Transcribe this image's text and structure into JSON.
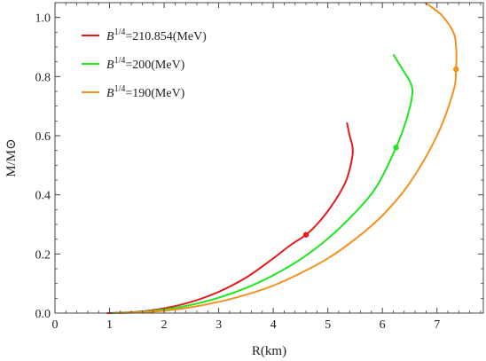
{
  "chart_data": {
    "type": "line",
    "title": "",
    "xlabel": "R(km)",
    "ylabel": "M/M⊙",
    "xlim": [
      0,
      7.85
    ],
    "ylim": [
      0,
      1.05
    ],
    "xticks": [
      0,
      1,
      2,
      3,
      4,
      5,
      6,
      7
    ],
    "yticks": [
      0.0,
      0.2,
      0.4,
      0.6,
      0.8,
      1.0
    ],
    "x_tick_labels": [
      "0",
      "1",
      "2",
      "3",
      "4",
      "5",
      "6",
      "7"
    ],
    "y_tick_labels": [
      "0.0",
      "0.2",
      "0.4",
      "0.6",
      "0.8",
      "1.0"
    ],
    "grid": false,
    "legend_position": "top-left",
    "series": [
      {
        "name": "B^{1/4}=210.854(MeV)",
        "legend_base": "B",
        "legend_sup": "1/4",
        "legend_rest": "=210.854(MeV)",
        "color": "#e41a1c",
        "x": [
          0.95,
          1.5,
          2.0,
          2.5,
          3.0,
          3.5,
          4.0,
          4.3,
          4.6,
          4.8,
          5.0,
          5.2,
          5.35,
          5.45,
          5.45,
          5.4,
          5.35
        ],
        "y": [
          0.0,
          0.004,
          0.016,
          0.038,
          0.072,
          0.12,
          0.185,
          0.228,
          0.265,
          0.3,
          0.345,
          0.4,
          0.455,
          0.53,
          0.565,
          0.6,
          0.645
        ],
        "marker": {
          "x": 4.6,
          "y": 0.265
        }
      },
      {
        "name": "B^{1/4}=200(MeV)",
        "legend_base": "B",
        "legend_sup": "1/4",
        "legend_rest": "=200(MeV)",
        "color": "#1ee61e",
        "x": [
          1.05,
          1.5,
          2.0,
          2.5,
          3.0,
          3.5,
          4.0,
          4.5,
          5.0,
          5.5,
          5.9,
          6.25,
          6.45,
          6.55,
          6.5,
          6.4,
          6.3,
          6.2
        ],
        "y": [
          0.0,
          0.003,
          0.012,
          0.028,
          0.052,
          0.085,
          0.128,
          0.182,
          0.252,
          0.34,
          0.43,
          0.56,
          0.66,
          0.745,
          0.785,
          0.815,
          0.845,
          0.875
        ],
        "marker": {
          "x": 6.25,
          "y": 0.56
        }
      },
      {
        "name": "B^{1/4}=190(MeV)",
        "legend_base": "B",
        "legend_sup": "1/4",
        "legend_rest": "=190(MeV)",
        "color": "#f5901e",
        "x": [
          1.1,
          1.5,
          2.0,
          2.5,
          3.0,
          3.5,
          4.0,
          4.5,
          5.0,
          5.5,
          6.0,
          6.5,
          7.0,
          7.3,
          7.35,
          7.35,
          7.3,
          7.1,
          6.9,
          6.78
        ],
        "y": [
          0.0,
          0.002,
          0.008,
          0.02,
          0.038,
          0.062,
          0.093,
          0.135,
          0.185,
          0.25,
          0.33,
          0.44,
          0.6,
          0.75,
          0.825,
          0.9,
          0.95,
          1.005,
          1.035,
          1.05
        ],
        "marker": {
          "x": 7.35,
          "y": 0.825
        }
      }
    ]
  }
}
